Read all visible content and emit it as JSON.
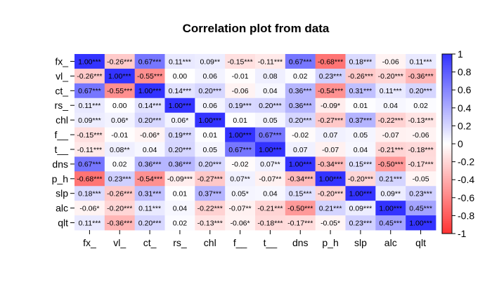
{
  "chart_data": {
    "type": "heatmap",
    "title": "Correlation plot from data",
    "labels": [
      "fx_",
      "vl_",
      "ct_",
      "rs_",
      "chl",
      "f__",
      "t__",
      "dns",
      "p_h",
      "slp",
      "alc",
      "qlt"
    ],
    "cells": [
      [
        "1.00***",
        "-0.26***",
        "0.67***",
        "0.11***",
        "0.09**",
        "-0.15***",
        "-0.11***",
        "0.67***",
        "-0.68***",
        "0.18***",
        "-0.06",
        "0.11***"
      ],
      [
        "-0.26***",
        "1.00***",
        "-0.55***",
        "0.00",
        "0.06",
        "-0.01",
        "0.08",
        "0.02",
        "0.23***",
        "-0.26***",
        "-0.20***",
        "-0.36***"
      ],
      [
        "0.67***",
        "-0.55***",
        "1.00***",
        "0.14***",
        "0.20***",
        "-0.06",
        "0.04",
        "0.36***",
        "-0.54***",
        "0.31***",
        "0.11***",
        "0.20***"
      ],
      [
        "0.11***",
        "0.00",
        "0.14***",
        "1.00***",
        "0.06",
        "0.19***",
        "0.20***",
        "0.36***",
        "-0.09*",
        "0.01",
        "0.04",
        "0.02"
      ],
      [
        "0.09***",
        "0.06*",
        "0.20***",
        "0.06*",
        "1.00***",
        "0.01",
        "0.05",
        "0.20***",
        "-0.27***",
        "0.37***",
        "-0.22***",
        "-0.13***"
      ],
      [
        "-0.15***",
        "-0.01",
        "-0.06*",
        "0.19***",
        "0.01",
        "1.00***",
        "0.67***",
        "-0.02",
        "0.07",
        "0.05",
        "-0.07",
        "-0.06"
      ],
      [
        "-0.11***",
        "0.08**",
        "0.04",
        "0.20***",
        "0.05",
        "0.67***",
        "1.00***",
        "0.07",
        "-0.07",
        "0.04",
        "-0.21***",
        "-0.18***"
      ],
      [
        "0.67***",
        "0.02",
        "0.36***",
        "0.36***",
        "0.20***",
        "-0.02",
        "0.07**",
        "1.00***",
        "-0.34***",
        "0.15***",
        "-0.50***",
        "-0.17***"
      ],
      [
        "-0.68***",
        "0.23***",
        "-0.54***",
        "-0.09***",
        "-0.27***",
        "0.07**",
        "-0.07**",
        "-0.34***",
        "1.00***",
        "-0.20***",
        "0.21***",
        "-0.05"
      ],
      [
        "0.18***",
        "-0.26***",
        "0.31***",
        "0.01",
        "0.37***",
        "0.05*",
        "0.04",
        "0.15***",
        "-0.20***",
        "1.00***",
        "0.09**",
        "0.23***"
      ],
      [
        "-0.06*",
        "-0.20***",
        "0.11***",
        "0.04",
        "-0.22***",
        "-0.07**",
        "-0.21***",
        "-0.50***",
        "0.21***",
        "0.09***",
        "1.00***",
        "0.45***"
      ],
      [
        "0.11***",
        "-0.36***",
        "0.20***",
        "0.02",
        "-0.13***",
        "-0.06*",
        "-0.18***",
        "-0.17***",
        "-0.05*",
        "0.23***",
        "0.45***",
        "1.00***"
      ]
    ],
    "colorbar": {
      "range": [
        -1,
        1
      ],
      "ticks": [
        "1",
        "0.8",
        "0.6",
        "0.4",
        "0.2",
        "0",
        "-0.2",
        "-0.4",
        "-0.6",
        "-0.8",
        "-1"
      ],
      "colors": {
        "negative": "#ff3333",
        "zero": "#ffffff",
        "positive": "#3333ff"
      }
    }
  }
}
